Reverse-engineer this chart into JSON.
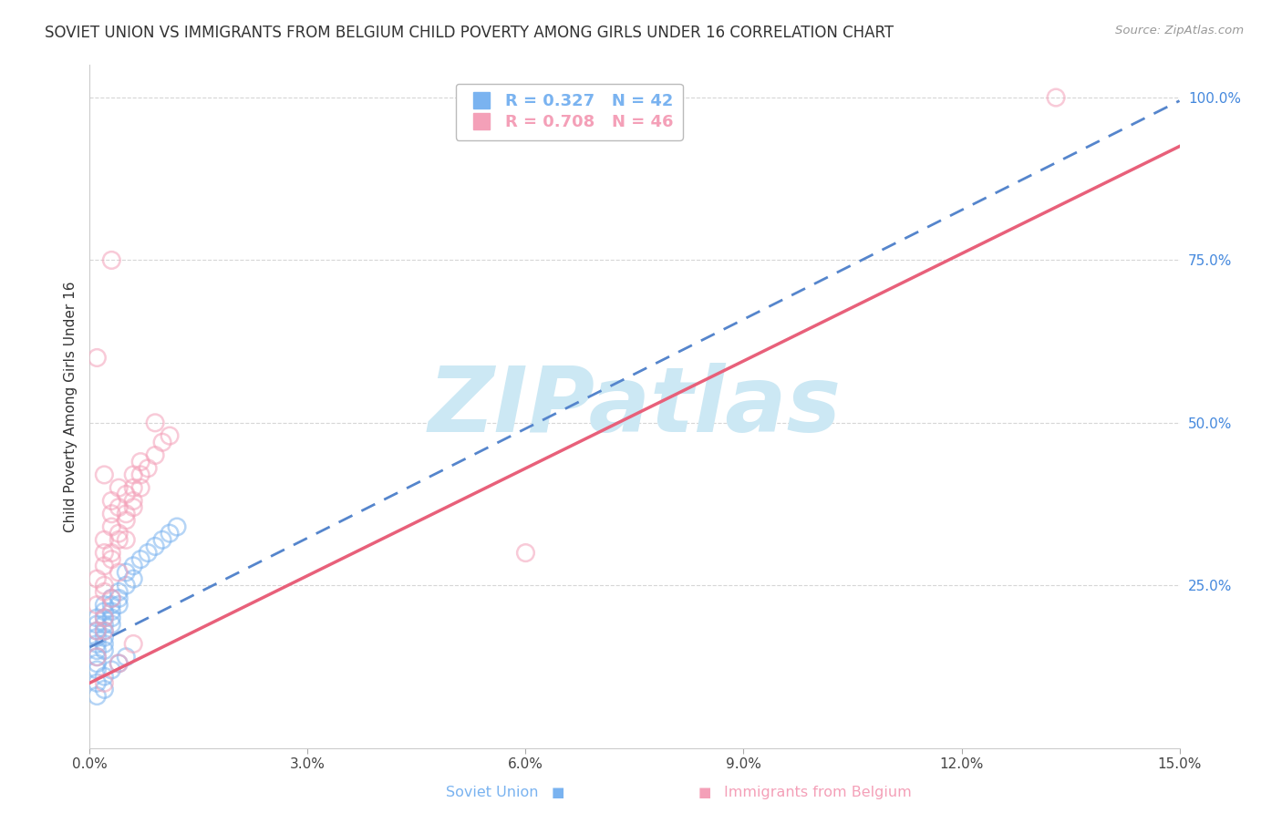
{
  "title": "SOVIET UNION VS IMMIGRANTS FROM BELGIUM CHILD POVERTY AMONG GIRLS UNDER 16 CORRELATION CHART",
  "source": "Source: ZipAtlas.com",
  "ylabel": "Child Poverty Among Girls Under 16",
  "xlim": [
    0.0,
    0.15
  ],
  "ylim": [
    0.0,
    1.05
  ],
  "xticks": [
    0.0,
    0.03,
    0.06,
    0.09,
    0.12,
    0.15
  ],
  "xtick_labels": [
    "0.0%",
    "3.0%",
    "6.0%",
    "9.0%",
    "12.0%",
    "15.0%"
  ],
  "yticks": [
    0.25,
    0.5,
    0.75,
    1.0
  ],
  "ytick_labels": [
    "25.0%",
    "50.0%",
    "75.0%",
    "100.0%"
  ],
  "soviet_R": 0.327,
  "soviet_N": 42,
  "belgium_R": 0.708,
  "belgium_N": 46,
  "soviet_color": "#7ab3f0",
  "soviet_color_edge": "#5a9de0",
  "belgium_color": "#f4a0b8",
  "belgium_color_edge": "#e87898",
  "soviet_line_color": "#5585cc",
  "belgium_line_color": "#e8607a",
  "background_color": "#ffffff",
  "grid_color": "#cccccc",
  "watermark_color": "#cce8f4",
  "title_fontsize": 12,
  "axis_label_fontsize": 11,
  "tick_fontsize": 11,
  "legend_fontsize": 13,
  "soviet_line_intercept": 0.155,
  "soviet_line_slope": 5.6,
  "belgium_line_intercept": 0.1,
  "belgium_line_slope": 5.5,
  "soviet_union_x": [
    0.001,
    0.001,
    0.001,
    0.001,
    0.001,
    0.001,
    0.001,
    0.001,
    0.001,
    0.002,
    0.002,
    0.002,
    0.002,
    0.002,
    0.002,
    0.002,
    0.002,
    0.003,
    0.003,
    0.003,
    0.003,
    0.003,
    0.004,
    0.004,
    0.004,
    0.005,
    0.005,
    0.006,
    0.006,
    0.007,
    0.008,
    0.009,
    0.01,
    0.011,
    0.012,
    0.001,
    0.001,
    0.002,
    0.002,
    0.003,
    0.004,
    0.005
  ],
  "soviet_union_y": [
    0.2,
    0.19,
    0.18,
    0.17,
    0.16,
    0.15,
    0.14,
    0.13,
    0.12,
    0.22,
    0.21,
    0.2,
    0.19,
    0.18,
    0.17,
    0.16,
    0.15,
    0.23,
    0.22,
    0.21,
    0.2,
    0.19,
    0.24,
    0.23,
    0.22,
    0.25,
    0.27,
    0.26,
    0.28,
    0.29,
    0.3,
    0.31,
    0.32,
    0.33,
    0.34,
    0.1,
    0.08,
    0.11,
    0.09,
    0.12,
    0.13,
    0.14
  ],
  "belgium_x": [
    0.001,
    0.001,
    0.001,
    0.002,
    0.002,
    0.002,
    0.002,
    0.003,
    0.003,
    0.003,
    0.003,
    0.004,
    0.004,
    0.004,
    0.005,
    0.005,
    0.006,
    0.006,
    0.007,
    0.007,
    0.008,
    0.009,
    0.01,
    0.011,
    0.002,
    0.002,
    0.003,
    0.004,
    0.005,
    0.006,
    0.001,
    0.003,
    0.005,
    0.007,
    0.009,
    0.002,
    0.004,
    0.006,
    0.001,
    0.002,
    0.003,
    0.06,
    0.133,
    0.002,
    0.004,
    0.006
  ],
  "belgium_y": [
    0.18,
    0.22,
    0.26,
    0.24,
    0.28,
    0.3,
    0.32,
    0.3,
    0.34,
    0.36,
    0.38,
    0.33,
    0.37,
    0.4,
    0.35,
    0.39,
    0.37,
    0.42,
    0.4,
    0.44,
    0.43,
    0.45,
    0.47,
    0.48,
    0.2,
    0.25,
    0.29,
    0.32,
    0.36,
    0.4,
    0.14,
    0.23,
    0.32,
    0.42,
    0.5,
    0.18,
    0.27,
    0.38,
    0.6,
    0.42,
    0.75,
    0.3,
    1.0,
    0.1,
    0.13,
    0.16
  ]
}
